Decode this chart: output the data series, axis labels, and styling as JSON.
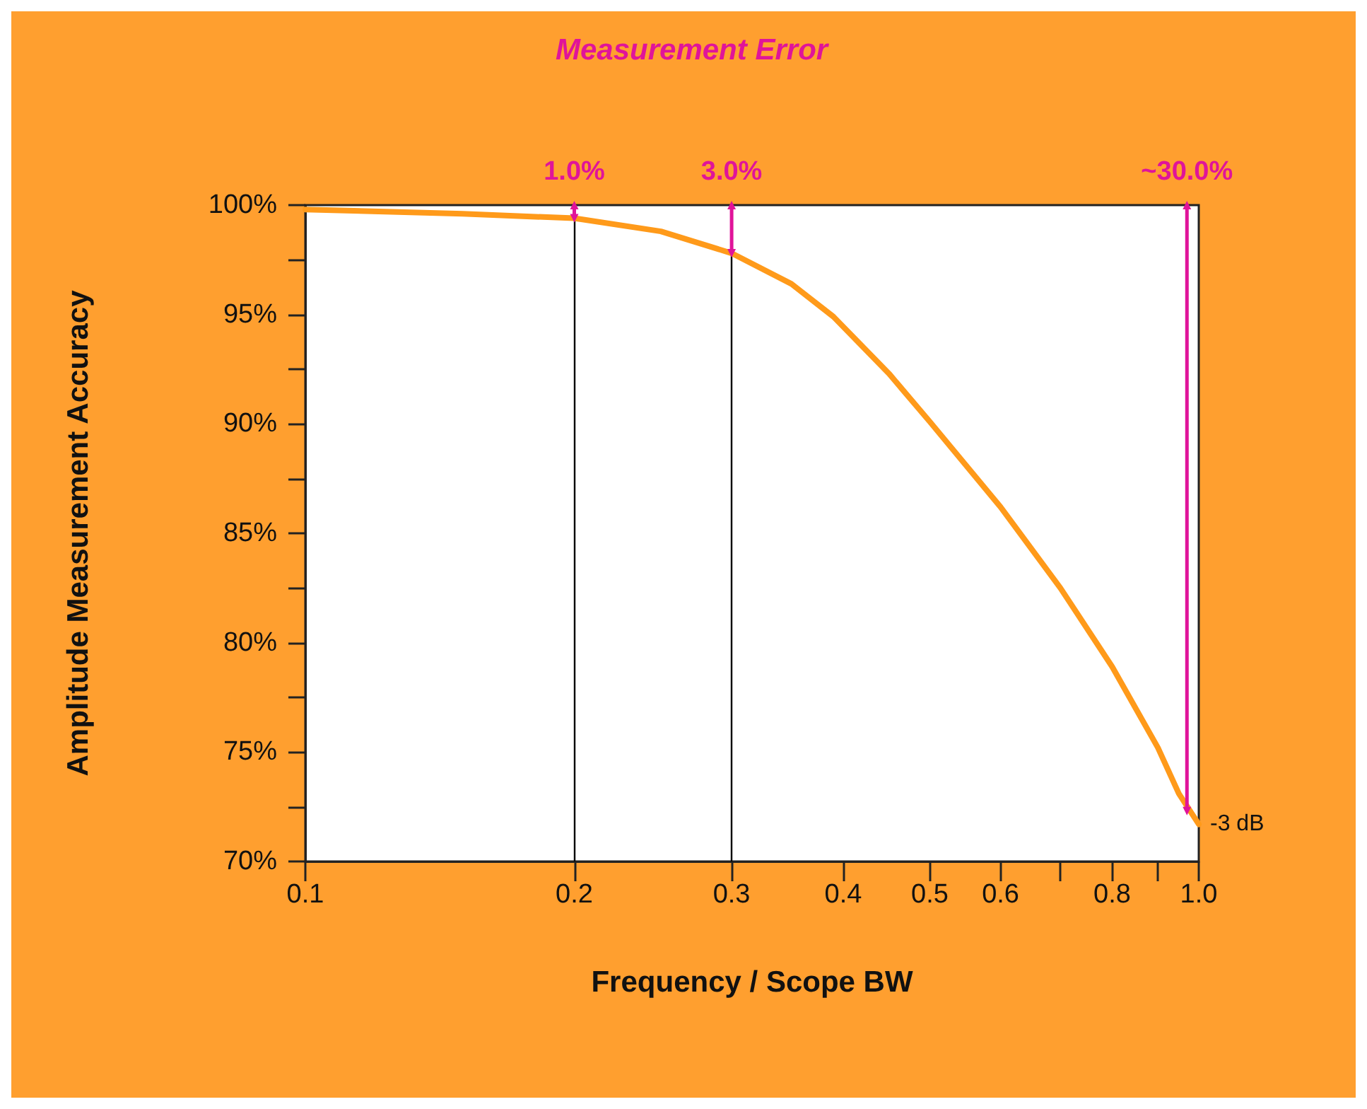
{
  "chart_data": {
    "type": "line",
    "title": "Measurement Error",
    "xlabel": "Frequency / Scope BW",
    "ylabel": "Amplitude Measurement Accuracy",
    "x": [
      0.1,
      0.15,
      0.2,
      0.25,
      0.3,
      0.35,
      0.39,
      0.45,
      0.5,
      0.6,
      0.7,
      0.8,
      0.9,
      0.95,
      1.0
    ],
    "series": [
      {
        "color": "#ff9a1a",
        "values": [
          99.8,
          99.6,
          99.4,
          98.8,
          97.8,
          96.4,
          94.9,
          92.3,
          90.1,
          86.2,
          82.5,
          78.9,
          75.2,
          73.1,
          71.7
        ]
      },
      {
        "color": "#e0149a",
        "x": [
          0.2,
          0.2
        ],
        "values": [
          100,
          99.4
        ],
        "marker": "triangle"
      },
      {
        "color": "#e0149a",
        "x": [
          0.3,
          0.3
        ],
        "values": [
          100,
          97.8
        ],
        "marker": "triangle"
      },
      {
        "color": "#e0149a",
        "x": [
          0.97,
          0.97
        ],
        "values": [
          100,
          72.3
        ],
        "marker": "triangle"
      }
    ],
    "xlim": [
      0.1,
      1.0
    ],
    "ylim": [
      70,
      100
    ],
    "log": "x",
    "xticks": [
      {
        "value": 0.1,
        "label": "0.1"
      },
      {
        "value": 0.2,
        "label": "0.2"
      },
      {
        "value": 0.3,
        "label": "0.3"
      },
      {
        "value": 0.4,
        "label": "0.4"
      },
      {
        "value": 0.5,
        "label": "0.5"
      },
      {
        "value": 0.6,
        "label": "0.6"
      },
      {
        "value": 0.7,
        "label": null
      },
      {
        "value": 0.8,
        "label": "0.8"
      },
      {
        "value": 0.9,
        "label": null
      },
      {
        "value": 1,
        "label": "1.0"
      }
    ],
    "yticks": [
      {
        "value": 70,
        "label": "70%"
      },
      {
        "value": 72.5,
        "label": null
      },
      {
        "value": 75,
        "label": "75%"
      },
      {
        "value": 77.5,
        "label": null
      },
      {
        "value": 80,
        "label": "80%"
      },
      {
        "value": 82.5,
        "label": null
      },
      {
        "value": 85,
        "label": "85%"
      },
      {
        "value": 87.5,
        "label": null
      },
      {
        "value": 90,
        "label": "90%"
      },
      {
        "value": 92.5,
        "label": null
      },
      {
        "value": 95,
        "label": "95%"
      },
      {
        "value": 97.5,
        "label": null
      },
      {
        "value": 100,
        "label": "100%"
      }
    ],
    "ref_lines": [
      {
        "axis": "x",
        "value": 0.2,
        "color": "#000000"
      },
      {
        "axis": "x",
        "value": 0.3,
        "color": "#000000"
      }
    ],
    "annotations": [
      {
        "text": "1.0%",
        "x": 0.2,
        "y": 100
      },
      {
        "text": "3.0%",
        "x": 0.3,
        "y": 100
      },
      {
        "text": "~30.0%",
        "x": 0.97,
        "y": 100
      },
      {
        "text": "-3 dB",
        "x": 1.0,
        "y": 71.7
      }
    ],
    "grid": false,
    "marker": "none",
    "line_style": "solid"
  }
}
